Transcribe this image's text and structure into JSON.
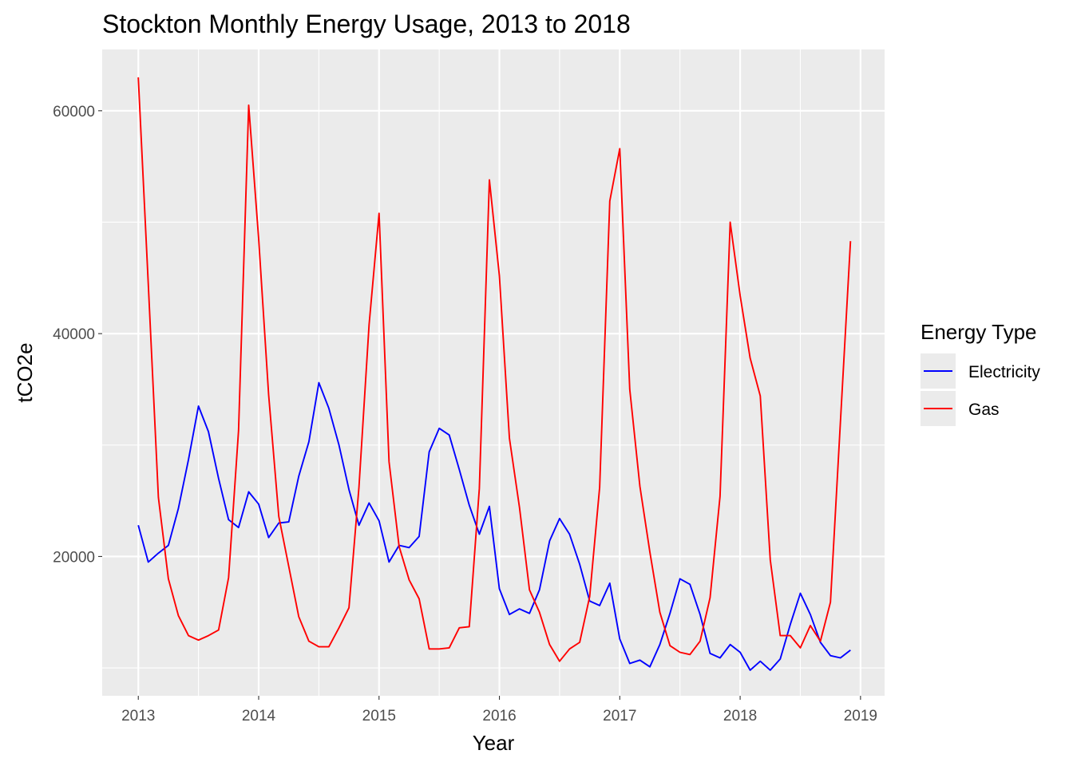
{
  "chart_data": {
    "type": "line",
    "title": "Stockton Monthly Energy Usage, 2013 to 2018",
    "xlabel": "Year",
    "ylabel": "tCO2e",
    "xlim": [
      2012.7,
      2019.2
    ],
    "ylim": [
      7500,
      65500
    ],
    "x_ticks": [
      2013,
      2014,
      2015,
      2016,
      2017,
      2018,
      2019
    ],
    "x_tick_labels": [
      "2013",
      "2014",
      "2015",
      "2016",
      "2017",
      "2018",
      "2019"
    ],
    "y_ticks": [
      20000,
      40000,
      60000
    ],
    "y_tick_labels": [
      "20000",
      "40000",
      "60000"
    ],
    "grid": true,
    "panel_background": "#ebebeb",
    "grid_color": "#ffffff",
    "legend": {
      "title": "Energy Type",
      "position": "right"
    },
    "x": [
      2013.0,
      2013.083,
      2013.167,
      2013.25,
      2013.333,
      2013.417,
      2013.5,
      2013.583,
      2013.667,
      2013.75,
      2013.833,
      2013.917,
      2014.0,
      2014.083,
      2014.167,
      2014.25,
      2014.333,
      2014.417,
      2014.5,
      2014.583,
      2014.667,
      2014.75,
      2014.833,
      2014.917,
      2015.0,
      2015.083,
      2015.167,
      2015.25,
      2015.333,
      2015.417,
      2015.5,
      2015.583,
      2015.667,
      2015.75,
      2015.833,
      2015.917,
      2016.0,
      2016.083,
      2016.167,
      2016.25,
      2016.333,
      2016.417,
      2016.5,
      2016.583,
      2016.667,
      2016.75,
      2016.833,
      2016.917,
      2017.0,
      2017.083,
      2017.167,
      2017.25,
      2017.333,
      2017.417,
      2017.5,
      2017.583,
      2017.667,
      2017.75,
      2017.833,
      2017.917,
      2018.0,
      2018.083,
      2018.167,
      2018.25,
      2018.333,
      2018.417,
      2018.5,
      2018.583,
      2018.667,
      2018.75,
      2018.833,
      2018.917
    ],
    "series": [
      {
        "name": "Electricity",
        "color": "#0000ff",
        "values": [
          22800,
          19500,
          20300,
          21000,
          24300,
          28700,
          33500,
          31200,
          27000,
          23300,
          22600,
          25800,
          24700,
          21700,
          23000,
          23100,
          27200,
          30300,
          35600,
          33300,
          30000,
          26000,
          22800,
          24800,
          23200,
          19500,
          21000,
          20800,
          21800,
          29400,
          31500,
          30900,
          27800,
          24600,
          22000,
          24500,
          17100,
          14800,
          15300,
          14900,
          17000,
          21400,
          23400,
          22000,
          19300,
          16000,
          15600,
          17600,
          12600,
          10400,
          10700,
          10100,
          12100,
          14900,
          18000,
          17500,
          14800,
          11300,
          10900,
          12100,
          11400,
          9800,
          10600,
          9800,
          10800,
          13900,
          16700,
          14800,
          12300,
          11100,
          10900,
          11600
        ]
      },
      {
        "name": "Gas",
        "color": "#ff0000",
        "values": [
          63000,
          44500,
          25300,
          18000,
          14700,
          12900,
          12500,
          12900,
          13400,
          18100,
          31300,
          60500,
          48500,
          34500,
          23600,
          19100,
          14600,
          12400,
          11900,
          11900,
          13600,
          15400,
          26200,
          40800,
          50800,
          28500,
          20900,
          17900,
          16200,
          11700,
          11700,
          11800,
          13600,
          13700,
          26100,
          53800,
          45200,
          30600,
          24400,
          17000,
          15000,
          12100,
          10600,
          11700,
          12300,
          16400,
          26200,
          51900,
          56600,
          35000,
          26300,
          20400,
          15000,
          12000,
          11400,
          11200,
          12400,
          16300,
          25400,
          50000,
          43400,
          37800,
          34400,
          19700,
          12900,
          12900,
          11800,
          13800,
          12400,
          15900,
          32100,
          48300
        ]
      }
    ]
  }
}
